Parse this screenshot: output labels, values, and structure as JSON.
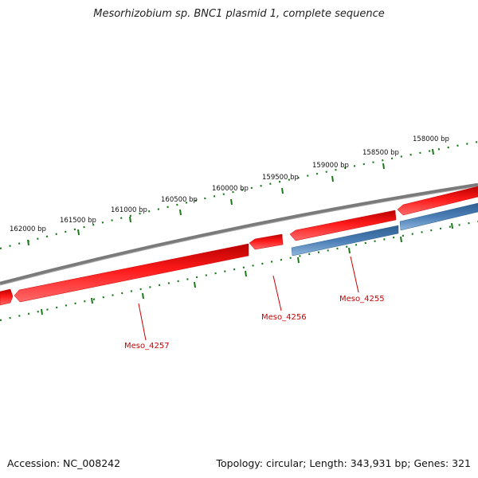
{
  "title": "Mesorhizobium sp. BNC1 plasmid 1, complete sequence",
  "footer": {
    "accession": "Accession: NC_008242",
    "summary": "Topology: circular; Length: 343,931 bp; Genes: 321"
  },
  "colors": {
    "backbone": "#7a7a7a",
    "forward_gene": "#e60000",
    "reverse_gene": "#4a7eb5",
    "ruler": "#1a7a1a",
    "label": "#cc0000"
  },
  "ruler_labels": [
    "158000 bp",
    "158500 bp",
    "159000 bp",
    "159500 bp",
    "160000 bp",
    "160500 bp",
    "161000 bp",
    "161500 bp",
    "162000 bp"
  ],
  "genes": [
    {
      "name": "Meso_4257",
      "strand": "forward"
    },
    {
      "name": "Meso_4256",
      "strand": "forward"
    },
    {
      "name": "Meso_4255",
      "strand": "reverse"
    }
  ]
}
